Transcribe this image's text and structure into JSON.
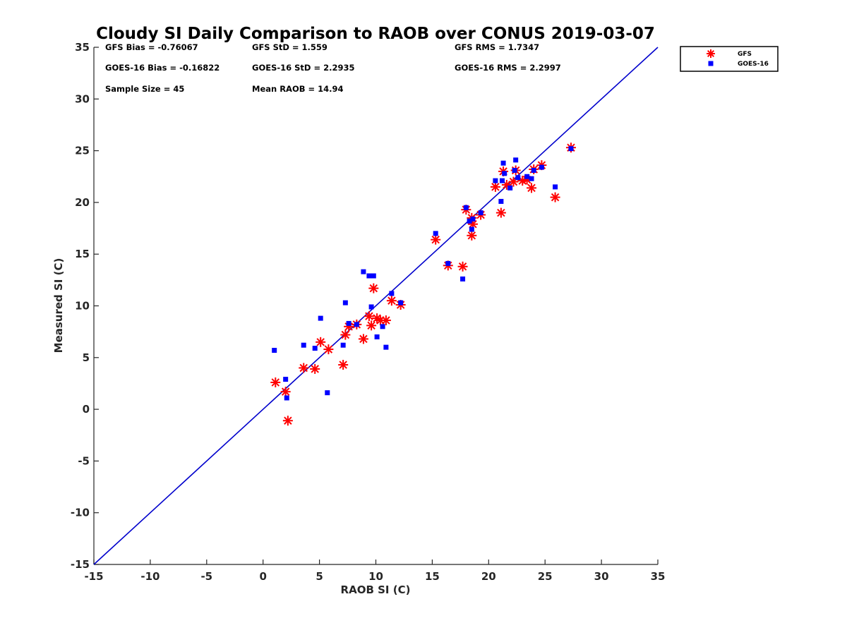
{
  "chart_data": {
    "type": "scatter",
    "title": "Cloudy SI Daily Comparison to RAOB over CONUS 2019-03-07",
    "xlabel": "RAOB SI (C)",
    "ylabel": "Measured SI (C)",
    "xlim": [
      -15,
      35
    ],
    "ylim": [
      -15,
      35
    ],
    "xticks": [
      -15,
      -10,
      -5,
      0,
      5,
      10,
      15,
      20,
      25,
      30,
      35
    ],
    "yticks": [
      -15,
      -10,
      -5,
      0,
      5,
      10,
      15,
      20,
      25,
      30,
      35
    ],
    "grid": false,
    "legend_position": "outside-top-right",
    "reference_line": {
      "x": [
        -15,
        35
      ],
      "y": [
        -15,
        35
      ],
      "color": "#0000cc"
    },
    "stats": [
      {
        "text": "GFS Bias = -0.76067",
        "col": 0,
        "row": 0
      },
      {
        "text": "GFS StD = 1.559",
        "col": 1,
        "row": 0
      },
      {
        "text": "GFS RMS = 1.7347",
        "col": 2,
        "row": 0
      },
      {
        "text": "GOES-16 Bias = -0.16822",
        "col": 0,
        "row": 1
      },
      {
        "text": "GOES-16 StD = 2.2935",
        "col": 1,
        "row": 1
      },
      {
        "text": "GOES-16 RMS = 2.2997",
        "col": 2,
        "row": 1
      },
      {
        "text": "Sample Size = 45",
        "col": 0,
        "row": 2
      },
      {
        "text": "Mean RAOB = 14.94",
        "col": 1,
        "row": 2
      }
    ],
    "series": [
      {
        "name": "GFS",
        "marker": "asterisk",
        "color": "#ff0000",
        "points": [
          [
            1.1,
            2.6
          ],
          [
            2.0,
            1.7
          ],
          [
            2.2,
            -1.1
          ],
          [
            3.6,
            4.0
          ],
          [
            4.6,
            3.9
          ],
          [
            5.1,
            6.5
          ],
          [
            5.8,
            5.8
          ],
          [
            7.1,
            4.3
          ],
          [
            7.3,
            7.2
          ],
          [
            7.6,
            8.0
          ],
          [
            8.3,
            8.2
          ],
          [
            8.9,
            6.8
          ],
          [
            9.4,
            9.0
          ],
          [
            9.6,
            8.1
          ],
          [
            9.8,
            11.7
          ],
          [
            10.1,
            8.8
          ],
          [
            10.4,
            8.6
          ],
          [
            10.9,
            8.6
          ],
          [
            11.4,
            10.5
          ],
          [
            12.2,
            10.1
          ],
          [
            15.3,
            16.4
          ],
          [
            16.4,
            13.9
          ],
          [
            17.7,
            13.8
          ],
          [
            18.0,
            19.3
          ],
          [
            18.5,
            18.5
          ],
          [
            18.5,
            16.8
          ],
          [
            18.6,
            17.9
          ],
          [
            19.3,
            18.8
          ],
          [
            20.6,
            21.5
          ],
          [
            21.1,
            19.0
          ],
          [
            21.3,
            23.0
          ],
          [
            21.6,
            21.7
          ],
          [
            22.2,
            22.0
          ],
          [
            22.4,
            23.1
          ],
          [
            23.0,
            22.1
          ],
          [
            23.4,
            22.2
          ],
          [
            23.8,
            21.4
          ],
          [
            24.0,
            23.2
          ],
          [
            24.7,
            23.6
          ],
          [
            25.9,
            20.5
          ],
          [
            27.3,
            25.3
          ]
        ]
      },
      {
        "name": "GOES-16",
        "marker": "square",
        "color": "#0000ff",
        "points": [
          [
            1.0,
            5.7
          ],
          [
            2.0,
            2.9
          ],
          [
            2.1,
            1.1
          ],
          [
            3.6,
            6.2
          ],
          [
            4.6,
            5.9
          ],
          [
            5.1,
            8.8
          ],
          [
            5.7,
            1.6
          ],
          [
            7.1,
            6.2
          ],
          [
            7.3,
            10.3
          ],
          [
            7.6,
            8.3
          ],
          [
            8.3,
            8.2
          ],
          [
            8.9,
            13.3
          ],
          [
            9.4,
            12.9
          ],
          [
            9.6,
            9.9
          ],
          [
            9.8,
            12.9
          ],
          [
            10.1,
            7.0
          ],
          [
            10.6,
            8.0
          ],
          [
            10.9,
            6.0
          ],
          [
            11.4,
            11.2
          ],
          [
            12.2,
            10.3
          ],
          [
            15.3,
            17.0
          ],
          [
            16.4,
            14.1
          ],
          [
            17.7,
            12.6
          ],
          [
            18.0,
            19.5
          ],
          [
            18.3,
            18.2
          ],
          [
            18.5,
            17.4
          ],
          [
            18.6,
            18.4
          ],
          [
            19.3,
            19.0
          ],
          [
            20.6,
            22.1
          ],
          [
            21.1,
            20.1
          ],
          [
            21.2,
            22.1
          ],
          [
            21.3,
            23.8
          ],
          [
            21.4,
            22.8
          ],
          [
            21.9,
            21.4
          ],
          [
            22.3,
            23.1
          ],
          [
            22.4,
            24.1
          ],
          [
            22.6,
            22.4
          ],
          [
            23.4,
            22.5
          ],
          [
            23.8,
            22.3
          ],
          [
            24.0,
            23.1
          ],
          [
            24.7,
            23.4
          ],
          [
            25.9,
            21.5
          ],
          [
            27.3,
            25.2
          ]
        ]
      }
    ]
  }
}
